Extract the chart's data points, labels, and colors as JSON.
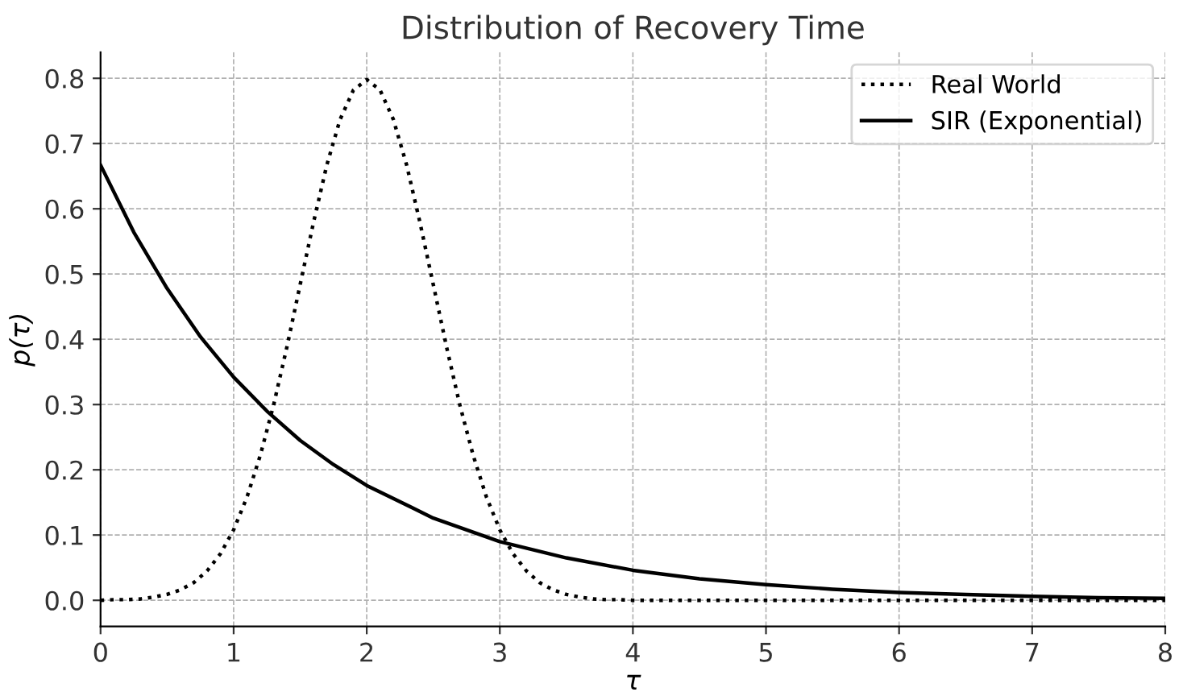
{
  "chart_data": {
    "type": "line",
    "title": "Distribution of Recovery Time",
    "xlabel": "τ",
    "ylabel": "p(τ)",
    "series": [
      {
        "name": "Real World",
        "color": "#000000",
        "line_style": "dotted",
        "x": [
          0,
          0.1,
          0.2,
          0.3,
          0.4,
          0.5,
          0.6,
          0.7,
          0.8,
          0.9,
          1.0,
          1.1,
          1.2,
          1.3,
          1.4,
          1.5,
          1.6,
          1.7,
          1.8,
          1.9,
          2.0,
          2.1,
          2.2,
          2.3,
          2.4,
          2.5,
          2.6,
          2.7,
          2.8,
          2.9,
          3.0,
          3.1,
          3.2,
          3.3,
          3.4,
          3.5,
          3.6,
          3.7,
          3.8,
          3.9,
          4.0,
          5,
          6,
          7,
          8
        ],
        "values": [
          0.0,
          0.001,
          0.001,
          0.002,
          0.005,
          0.009,
          0.016,
          0.027,
          0.045,
          0.071,
          0.108,
          0.158,
          0.222,
          0.299,
          0.388,
          0.484,
          0.579,
          0.667,
          0.737,
          0.782,
          0.798,
          0.782,
          0.737,
          0.667,
          0.579,
          0.484,
          0.388,
          0.299,
          0.222,
          0.158,
          0.108,
          0.071,
          0.045,
          0.027,
          0.016,
          0.009,
          0.005,
          0.002,
          0.001,
          0.001,
          0.0,
          0.0,
          0.0,
          0.0,
          0.0
        ]
      },
      {
        "name": "SIR (Exponential)",
        "color": "#000000",
        "line_style": "solid",
        "x": [
          0,
          0.25,
          0.5,
          0.75,
          1,
          1.25,
          1.5,
          1.75,
          2,
          2.5,
          3,
          3.5,
          4,
          4.5,
          5,
          5.5,
          6,
          6.5,
          7,
          7.5,
          8
        ],
        "values": [
          0.667,
          0.564,
          0.478,
          0.404,
          0.342,
          0.29,
          0.245,
          0.208,
          0.176,
          0.126,
          0.09,
          0.065,
          0.046,
          0.033,
          0.024,
          0.017,
          0.012,
          0.009,
          0.006,
          0.004,
          0.003
        ]
      }
    ],
    "xlim": [
      0,
      8
    ],
    "xticks": [
      0,
      1,
      2,
      3,
      4,
      5,
      6,
      7,
      8
    ],
    "ylim": [
      -0.04,
      0.84
    ],
    "yticks": [
      {
        "value": 0,
        "label": "0.0"
      },
      0.1,
      0.2,
      0.3,
      0.4,
      0.5,
      0.6,
      0.7,
      0.8
    ],
    "grid": true,
    "legend": "top right"
  }
}
